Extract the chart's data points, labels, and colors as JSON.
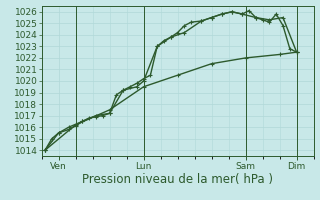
{
  "title": "",
  "xlabel": "Pression niveau de la mer( hPa )",
  "ylabel": "",
  "background_color": "#c8e8e8",
  "grid_color": "#b0d8d8",
  "line_color": "#2d5a2d",
  "ylim": [
    1013.5,
    1026.5
  ],
  "yticks": [
    1014,
    1015,
    1016,
    1017,
    1018,
    1019,
    1020,
    1021,
    1022,
    1023,
    1024,
    1025,
    1026
  ],
  "day_labels": [
    "Ven",
    "Lun",
    "Sam",
    "Dim"
  ],
  "day_positions": [
    0.5,
    3.0,
    6.0,
    7.5
  ],
  "xlim": [
    0,
    8.0
  ],
  "series1_x": [
    0.1,
    0.3,
    0.5,
    0.8,
    1.0,
    1.2,
    1.4,
    1.6,
    1.8,
    2.0,
    2.2,
    2.4,
    2.6,
    2.8,
    3.0,
    3.2,
    3.4,
    3.6,
    3.8,
    4.0,
    4.2,
    4.4,
    4.7,
    5.0,
    5.3,
    5.6,
    5.9,
    6.1,
    6.3,
    6.5,
    6.7,
    6.9,
    7.1,
    7.3,
    7.5
  ],
  "series1_y": [
    1014.0,
    1015.0,
    1015.5,
    1015.8,
    1016.1,
    1016.5,
    1016.8,
    1016.9,
    1017.0,
    1017.2,
    1018.8,
    1019.2,
    1019.5,
    1019.8,
    1020.2,
    1020.5,
    1023.0,
    1023.5,
    1023.8,
    1024.2,
    1024.8,
    1025.1,
    1025.2,
    1025.5,
    1025.8,
    1026.0,
    1025.8,
    1026.1,
    1025.5,
    1025.3,
    1025.1,
    1025.8,
    1024.8,
    1022.8,
    1022.5
  ],
  "series2_x": [
    0.1,
    0.5,
    0.8,
    1.2,
    1.6,
    2.0,
    2.4,
    2.8,
    3.0,
    3.4,
    3.8,
    4.2,
    4.7,
    5.0,
    5.3,
    5.6,
    5.9,
    6.3,
    6.7,
    7.1,
    7.5
  ],
  "series2_y": [
    1014.0,
    1015.5,
    1016.0,
    1016.5,
    1017.0,
    1017.2,
    1019.2,
    1019.5,
    1020.0,
    1023.0,
    1023.8,
    1024.2,
    1025.2,
    1025.5,
    1025.8,
    1026.0,
    1025.8,
    1025.5,
    1025.3,
    1025.5,
    1022.5
  ],
  "series3_x": [
    0.1,
    1.0,
    2.0,
    3.0,
    4.0,
    5.0,
    6.0,
    7.0,
    7.5
  ],
  "series3_y": [
    1014.0,
    1016.2,
    1017.5,
    1019.5,
    1020.5,
    1021.5,
    1022.0,
    1022.3,
    1022.5
  ],
  "vline_positions": [
    1.0,
    3.0,
    6.0,
    7.5
  ],
  "marker": "+",
  "marker_size": 3.5,
  "line_width": 1.0,
  "tick_fontsize": 6.5,
  "xlabel_fontsize": 8.5
}
